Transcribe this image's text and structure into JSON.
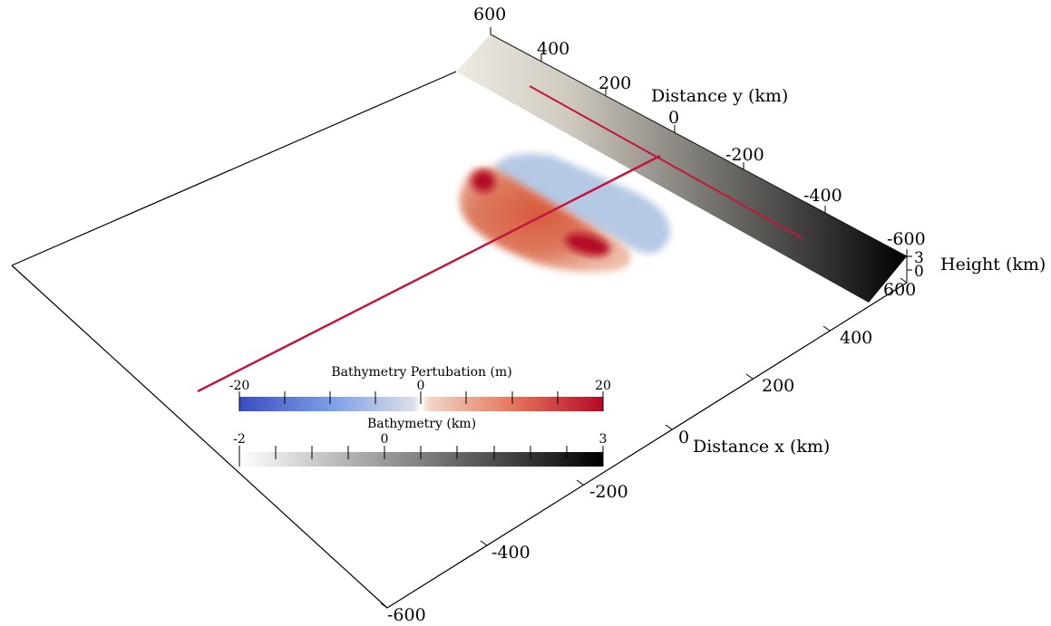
{
  "axes": {
    "y": {
      "title": "Distance y (km)",
      "ticks": [
        "600",
        "400",
        "200",
        "0",
        "-200",
        "-400",
        "-600"
      ]
    },
    "x": {
      "title": "Distance x (km)",
      "ticks": [
        "600",
        "400",
        "200",
        "0",
        "-200",
        "-400",
        "-600"
      ]
    },
    "z": {
      "title": "Height (km)",
      "ticks": [
        "3",
        "0"
      ]
    }
  },
  "colorbars": {
    "perturbation": {
      "title": "Bathymetry Pertubation (m)",
      "ticks": [
        "-20",
        "0",
        "20"
      ],
      "colors": {
        "low": "#3a4cc0",
        "mid": "#f5f5f5",
        "high": "#b50927"
      }
    },
    "bathymetry": {
      "title": "Bathymetry (km)",
      "ticks": [
        "-2",
        "0",
        "3"
      ],
      "colors": {
        "low": "#ffffff",
        "high": "#000000"
      }
    }
  },
  "colors": {
    "profile_line": "#c4163c",
    "perturb_positive": "#c94a35",
    "perturb_negative": "#a9c0e0"
  }
}
